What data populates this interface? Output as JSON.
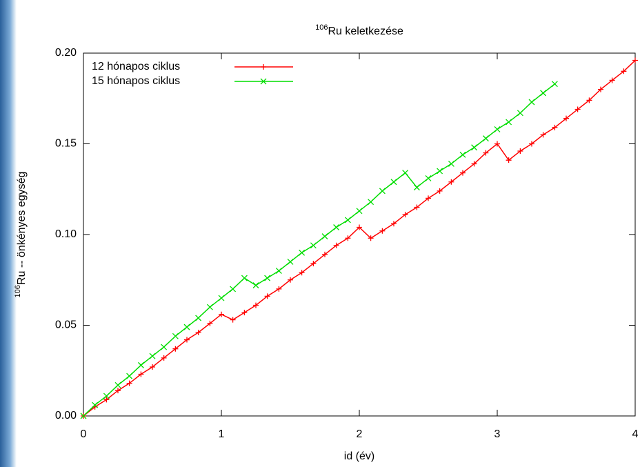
{
  "chart_data": {
    "type": "line",
    "title_sup": "106",
    "title": "Ru keletkezése",
    "ylabel_sup": "106",
    "ylabel": "Ru -- önkényes egység",
    "xlabel": "id  (év)",
    "x": [
      0,
      0.083,
      0.167,
      0.25,
      0.333,
      0.417,
      0.5,
      0.583,
      0.667,
      0.75,
      0.833,
      0.917,
      1,
      1.083,
      1.167,
      1.25,
      1.333,
      1.417,
      1.5,
      1.583,
      1.667,
      1.75,
      1.833,
      1.917,
      2,
      2.083,
      2.167,
      2.25,
      2.333,
      2.417,
      2.5,
      2.583,
      2.667,
      2.75,
      2.833,
      2.917,
      3,
      3.083,
      3.167,
      3.25,
      3.333,
      3.417,
      3.5,
      3.583,
      3.667,
      3.75,
      3.833,
      3.917,
      4
    ],
    "series": [
      {
        "name": "12 hónapos ciklus",
        "color": "#ff0000",
        "marker": "+",
        "values": [
          0,
          0.005,
          0.009,
          0.014,
          0.018,
          0.023,
          0.027,
          0.032,
          0.037,
          0.042,
          0.046,
          0.051,
          0.056,
          0.053,
          0.057,
          0.061,
          0.066,
          0.07,
          0.075,
          0.079,
          0.084,
          0.089,
          0.094,
          0.098,
          0.104,
          0.098,
          0.102,
          0.106,
          0.111,
          0.115,
          0.12,
          0.124,
          0.129,
          0.134,
          0.139,
          0.145,
          0.15,
          0.141,
          0.146,
          0.15,
          0.155,
          0.159,
          0.164,
          0.169,
          0.174,
          0.18,
          0.185,
          0.19,
          0.196
        ]
      },
      {
        "name": "15 hónapos ciklus",
        "color": "#00dd00",
        "marker": "x",
        "values": [
          0,
          0.006,
          0.011,
          0.017,
          0.022,
          0.028,
          0.033,
          0.038,
          0.044,
          0.049,
          0.054,
          0.06,
          0.065,
          0.07,
          0.076,
          0.072,
          0.076,
          0.08,
          0.085,
          0.09,
          0.094,
          0.099,
          0.104,
          0.108,
          0.113,
          0.118,
          0.124,
          0.129,
          0.134,
          0.126,
          0.131,
          0.135,
          0.139,
          0.144,
          0.148,
          0.153,
          0.158,
          0.162,
          0.167,
          0.173,
          0.178,
          0.183,
          null,
          null,
          null,
          null,
          null,
          null,
          null
        ]
      }
    ],
    "xlim": [
      0,
      4
    ],
    "xticks": [
      0,
      1,
      2,
      3,
      4
    ],
    "ylim": [
      0,
      0.2
    ],
    "yticks": [
      {
        "value": 0,
        "label": "0.00"
      },
      {
        "value": 0.05,
        "label": "0.05"
      },
      {
        "value": 0.1,
        "label": "0.10"
      },
      {
        "value": 0.15,
        "label": "0.15"
      },
      {
        "value": 0.2,
        "label": "0.20"
      }
    ],
    "legend": "upper-left"
  }
}
